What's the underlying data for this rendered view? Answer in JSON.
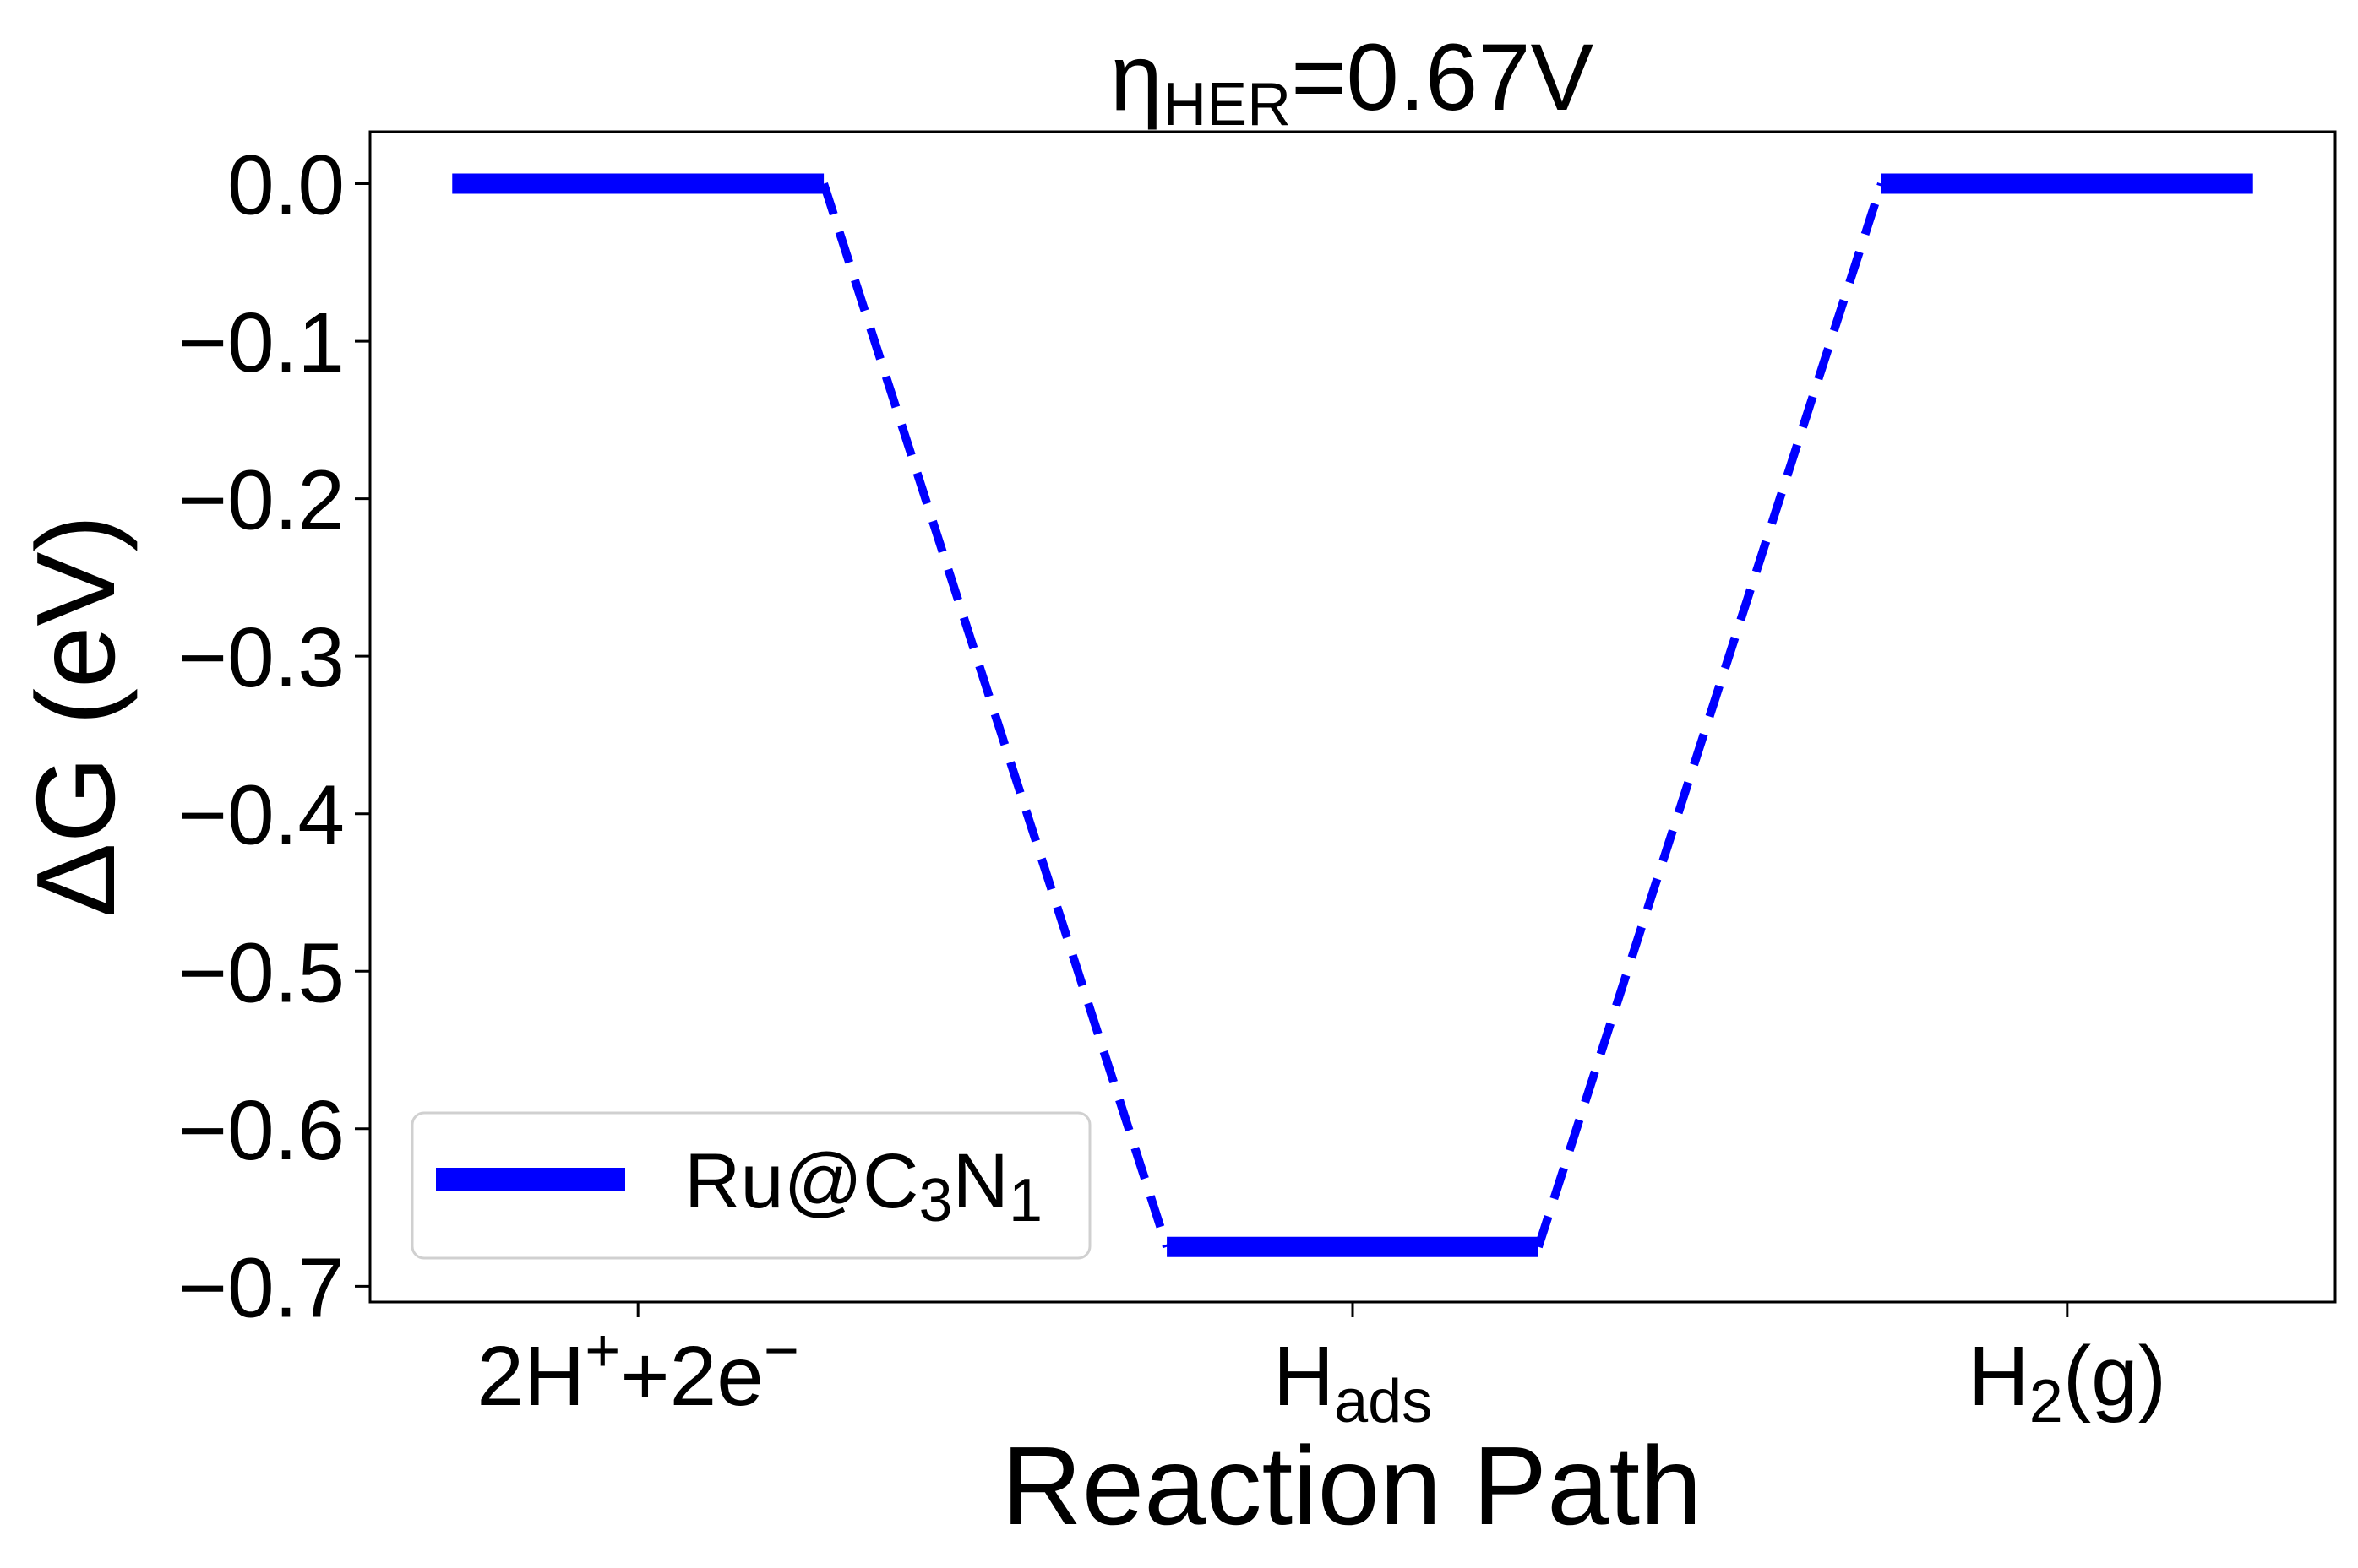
{
  "chart_data": {
    "type": "line",
    "title": {
      "main": "η",
      "sub": "HER",
      "rest": "=0.67V"
    },
    "xlabel": "Reaction Path",
    "ylabel": "ΔG (eV)",
    "ylim": [
      -0.71,
      0.033
    ],
    "xlim": [
      -0.375,
      2.375
    ],
    "yticks": [
      {
        "value": 0.0,
        "label": "0.0"
      },
      {
        "value": -0.1,
        "label": "−0.1"
      },
      {
        "value": -0.2,
        "label": "−0.2"
      },
      {
        "value": -0.3,
        "label": "−0.3"
      },
      {
        "value": -0.4,
        "label": "−0.4"
      },
      {
        "value": -0.5,
        "label": "−0.5"
      },
      {
        "value": -0.6,
        "label": "−0.6"
      },
      {
        "value": -0.7,
        "label": "−0.7"
      }
    ],
    "categories": [
      {
        "index": 0,
        "label": {
          "main": "2H",
          "sup1": "+",
          "mid": "+2e",
          "sup2": "−"
        }
      },
      {
        "index": 1,
        "label": {
          "main": "H",
          "sub": "ads"
        }
      },
      {
        "index": 2,
        "label": {
          "main": "H",
          "sub": "2",
          "rest": "(g)"
        }
      }
    ],
    "series": [
      {
        "name": {
          "a": "Ru@C",
          "s1": "3",
          "b": "N",
          "s2": "1"
        },
        "color": "#0000ff",
        "values": [
          0.0,
          -0.675,
          0.0
        ]
      }
    ],
    "grid": false,
    "legend_position": "lower-left"
  }
}
